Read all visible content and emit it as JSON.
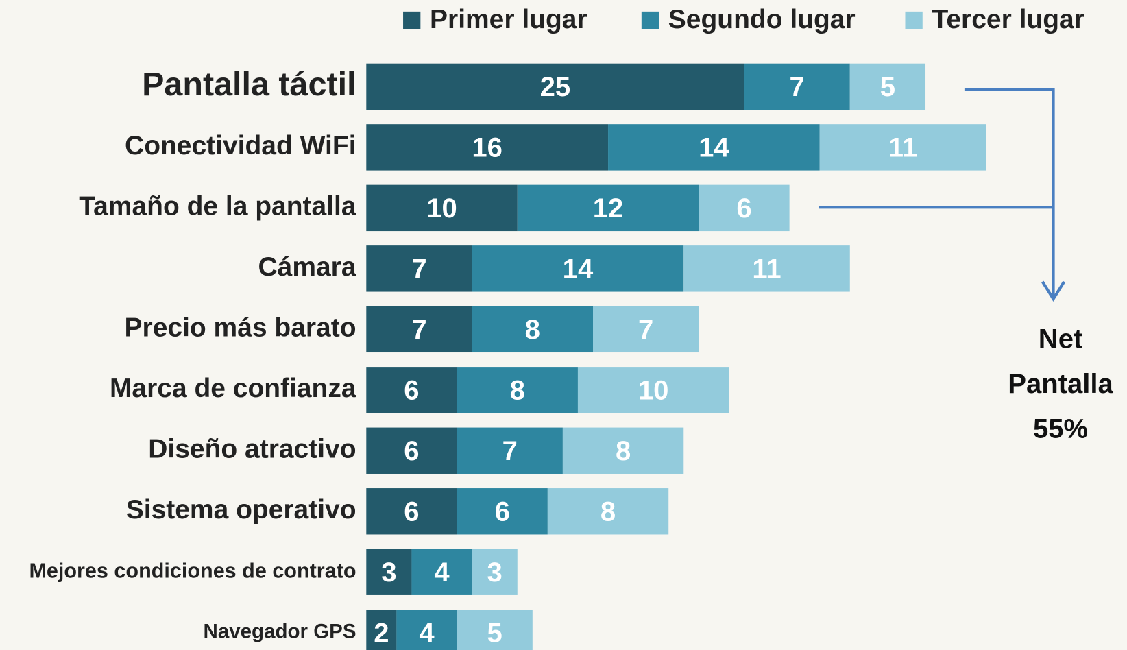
{
  "chart_data": {
    "type": "stacked-barh",
    "categories": [
      "Pantalla táctil",
      "Conectividad WiFi",
      "Tamaño de la pantalla",
      "Cámara",
      "Precio más barato",
      "Marca de confianza",
      "Diseño atractivo",
      "Sistema operativo",
      "Mejores condiciones de contrato",
      "Navegador GPS"
    ],
    "series": [
      {
        "name": "Primer lugar",
        "color": "#235a6b",
        "values": [
          25,
          16,
          10,
          7,
          7,
          6,
          6,
          6,
          3,
          2
        ]
      },
      {
        "name": "Segundo lugar",
        "color": "#2e86a0",
        "values": [
          7,
          14,
          12,
          14,
          8,
          8,
          7,
          6,
          4,
          4
        ]
      },
      {
        "name": "Tercer lugar",
        "color": "#93cbdc",
        "values": [
          5,
          11,
          6,
          11,
          7,
          10,
          8,
          8,
          3,
          5
        ]
      }
    ],
    "annotation": [
      "Net",
      "Pantalla",
      "55%"
    ]
  }
}
